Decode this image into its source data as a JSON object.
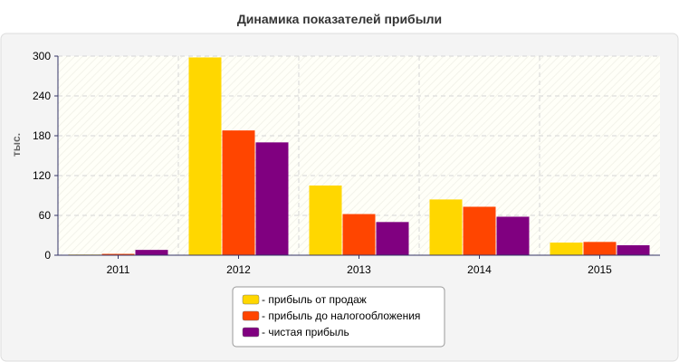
{
  "chart_data": {
    "type": "bar",
    "title": "Динамика показателей прибыли",
    "ylabel": "тыс.",
    "xlabel": "",
    "categories": [
      "2011",
      "2012",
      "2013",
      "2014",
      "2015"
    ],
    "ylim": [
      0,
      300
    ],
    "yticks": [
      0,
      60,
      120,
      180,
      240,
      300
    ],
    "grid": true,
    "legend_position": "bottom",
    "series": [
      {
        "name": "- прибыль от продаж",
        "color": "#FFD700",
        "values": [
          1,
          298,
          105,
          84,
          19
        ]
      },
      {
        "name": "- прибыль до налогообложения",
        "color": "#FF4500",
        "values": [
          2,
          188,
          62,
          73,
          20
        ]
      },
      {
        "name": "- чистая прибыль",
        "color": "#800080",
        "values": [
          8,
          170,
          50,
          58,
          15
        ]
      }
    ]
  }
}
